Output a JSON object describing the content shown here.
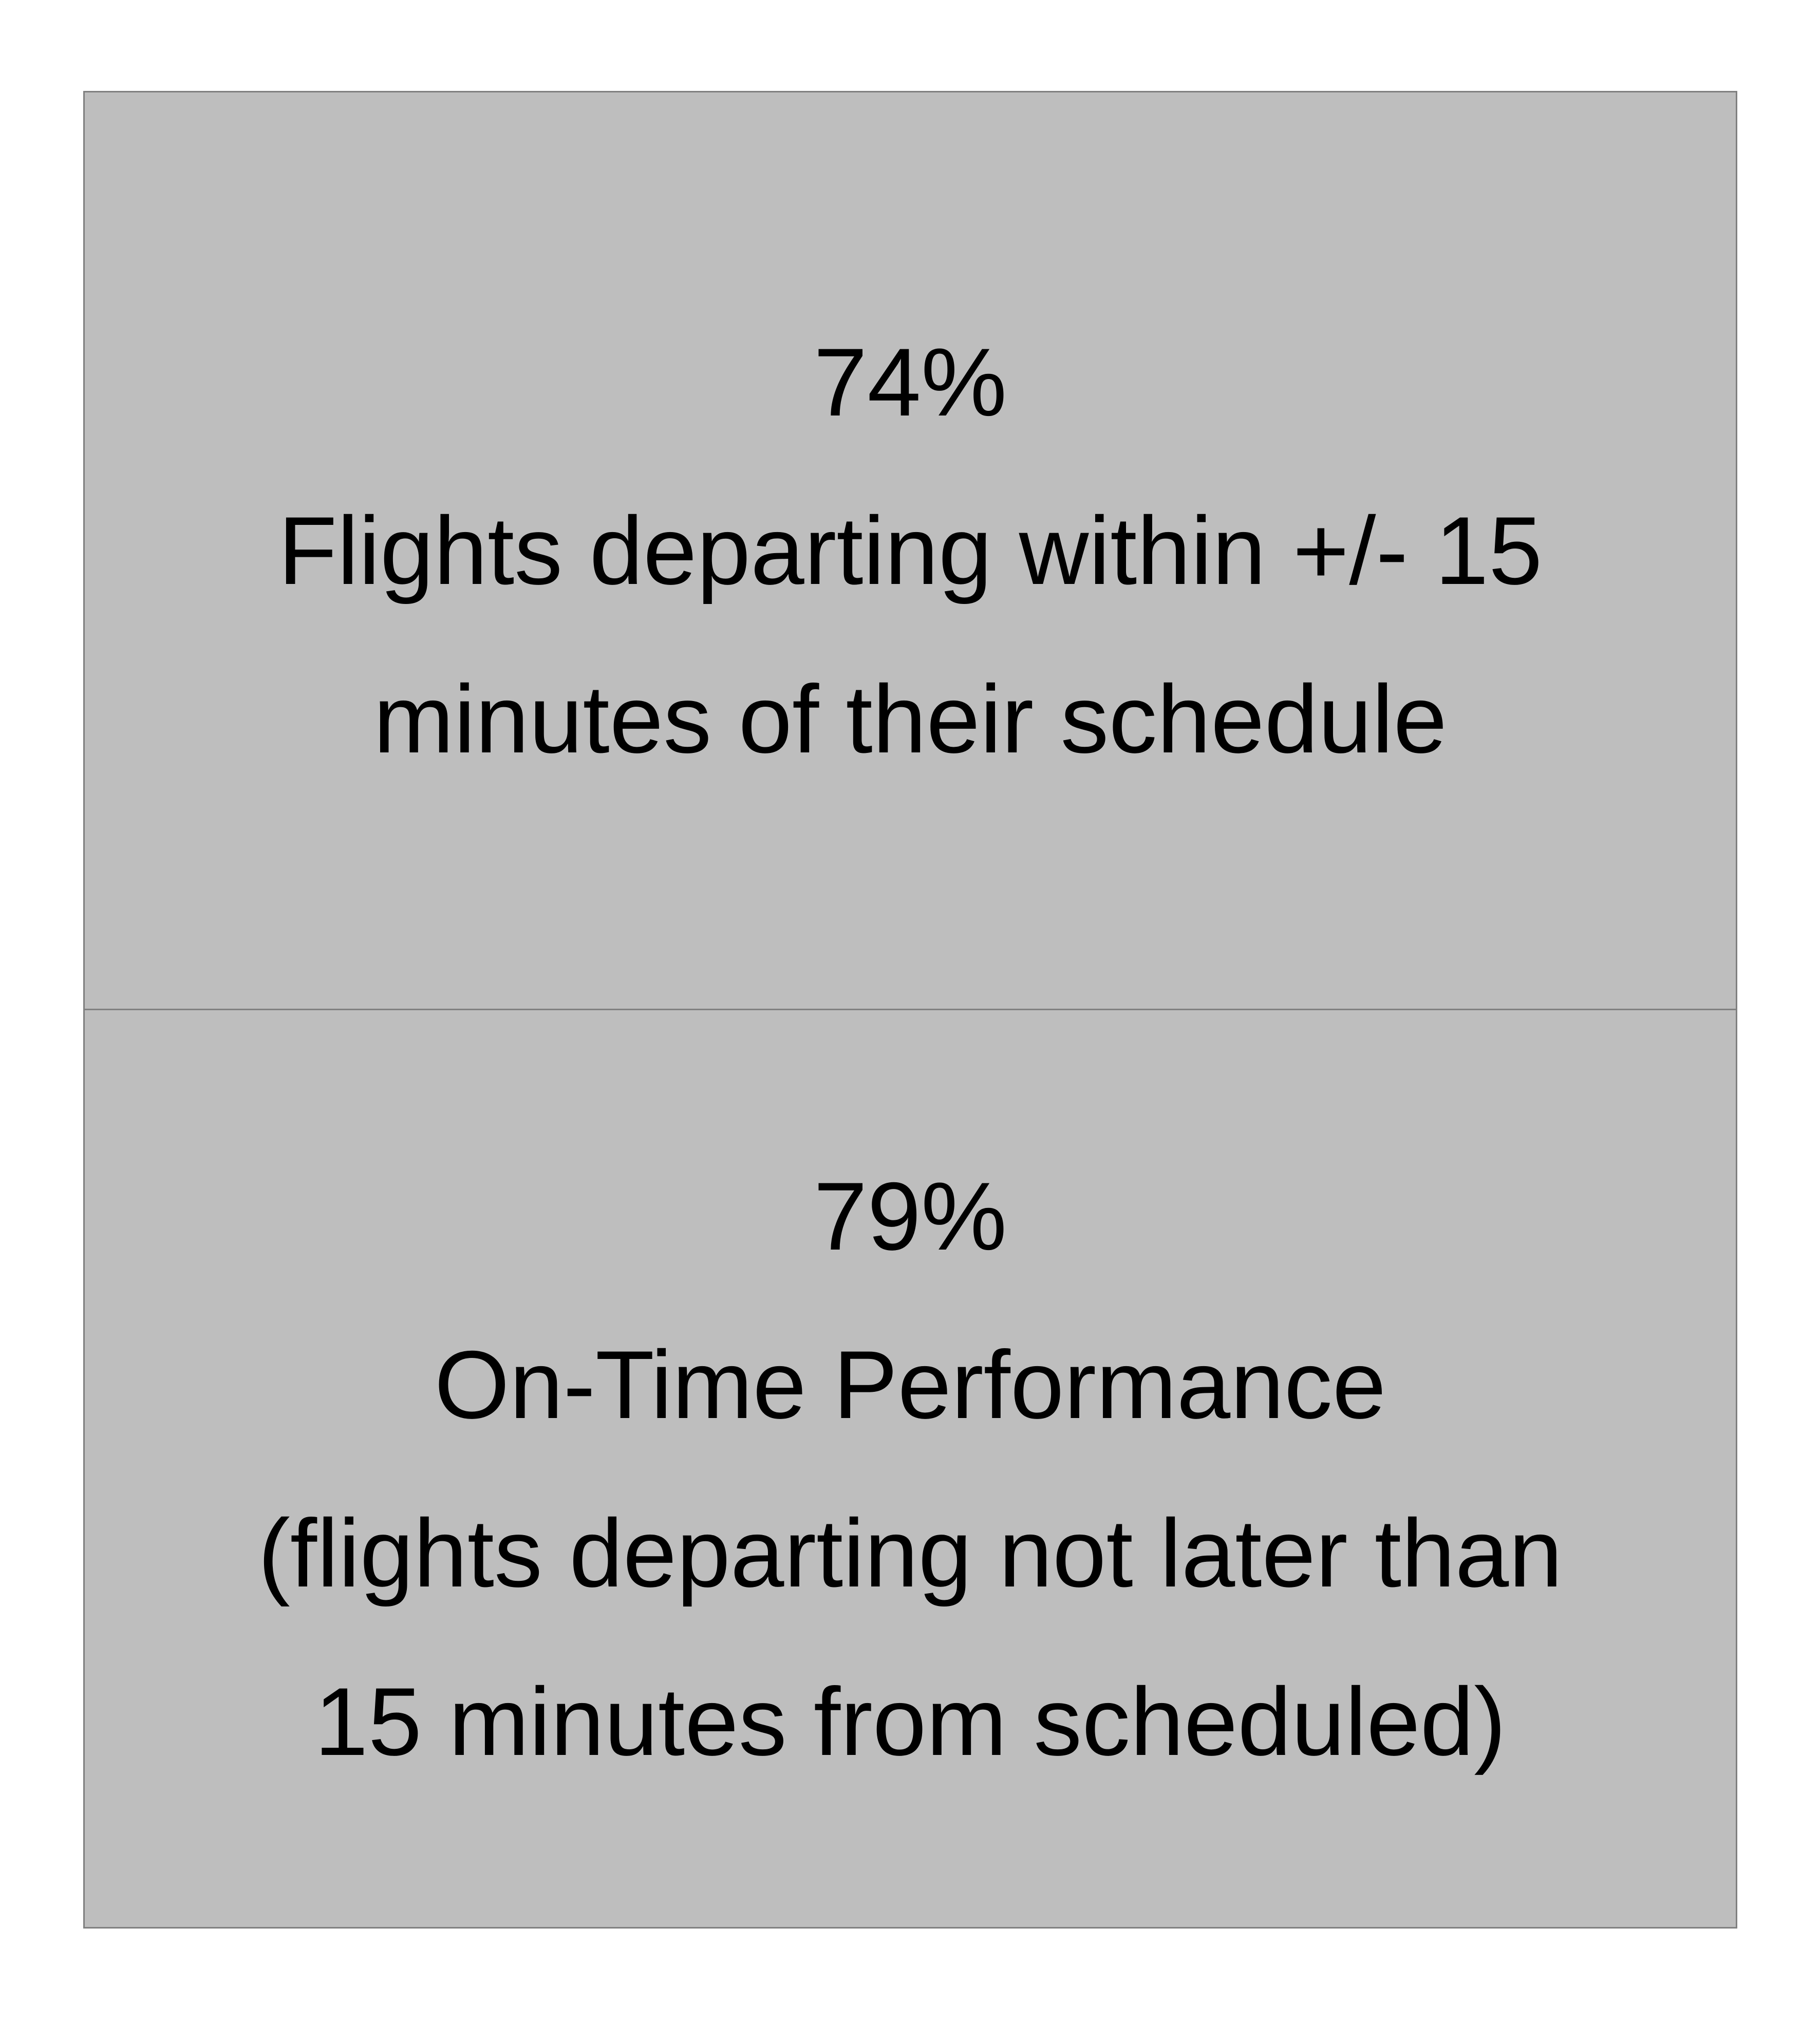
{
  "chart_data": {
    "type": "table",
    "rows": [
      {
        "value": "74%",
        "description_lines": [
          "Flights departing within +/- 15",
          "minutes of their schedule"
        ]
      },
      {
        "value": "79%",
        "description_lines": [
          "On-Time Performance",
          "(flights departing not later than",
          "15 minutes from scheduled)"
        ]
      }
    ]
  },
  "colors": {
    "cell_background": "#bebebe",
    "border": "#808080",
    "text": "#000000"
  }
}
